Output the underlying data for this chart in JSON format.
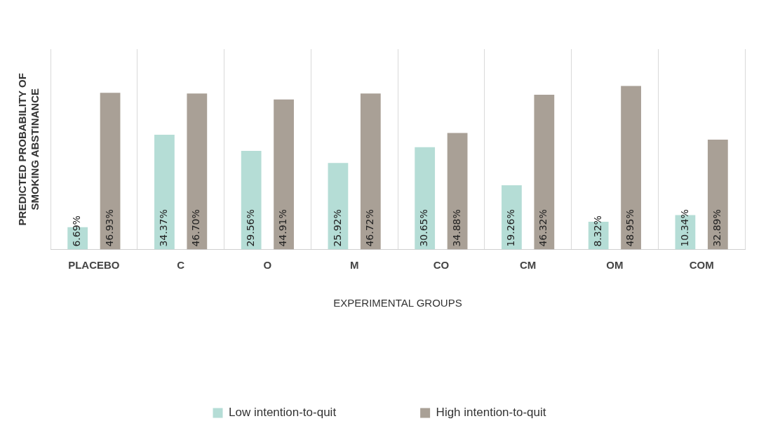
{
  "chart_data": {
    "type": "bar",
    "xlabel": "EXPERIMENTAL GROUPS",
    "ylabel": "PREDICTED PROBABILITY OF\nSMOKING ABSTINANCE",
    "categories": [
      "PLACEBO",
      "C",
      "O",
      "M",
      "CO",
      "CM",
      "OM",
      "COM"
    ],
    "series": [
      {
        "name": "Low intention-to-quit",
        "color": "#b5ddd6",
        "values": [
          6.69,
          34.37,
          29.56,
          25.92,
          30.65,
          19.26,
          8.32,
          10.34
        ],
        "value_labels": [
          "6.69%",
          "34.37%",
          "29.56%",
          "25.92%",
          "30.65%",
          "19.26%",
          "8.32%",
          "10.34%"
        ]
      },
      {
        "name": "High intention-to-quit",
        "color": "#a9a096",
        "values": [
          46.93,
          46.7,
          44.91,
          46.72,
          34.88,
          46.32,
          48.95,
          32.89
        ],
        "value_labels": [
          "46.93%",
          "46.70%",
          "44.91%",
          "46.72%",
          "34.88%",
          "46.32%",
          "48.95%",
          "32.89%"
        ]
      }
    ],
    "relative": false,
    "grid": "x",
    "tick_labels": "x",
    "legend": "bottom"
  }
}
